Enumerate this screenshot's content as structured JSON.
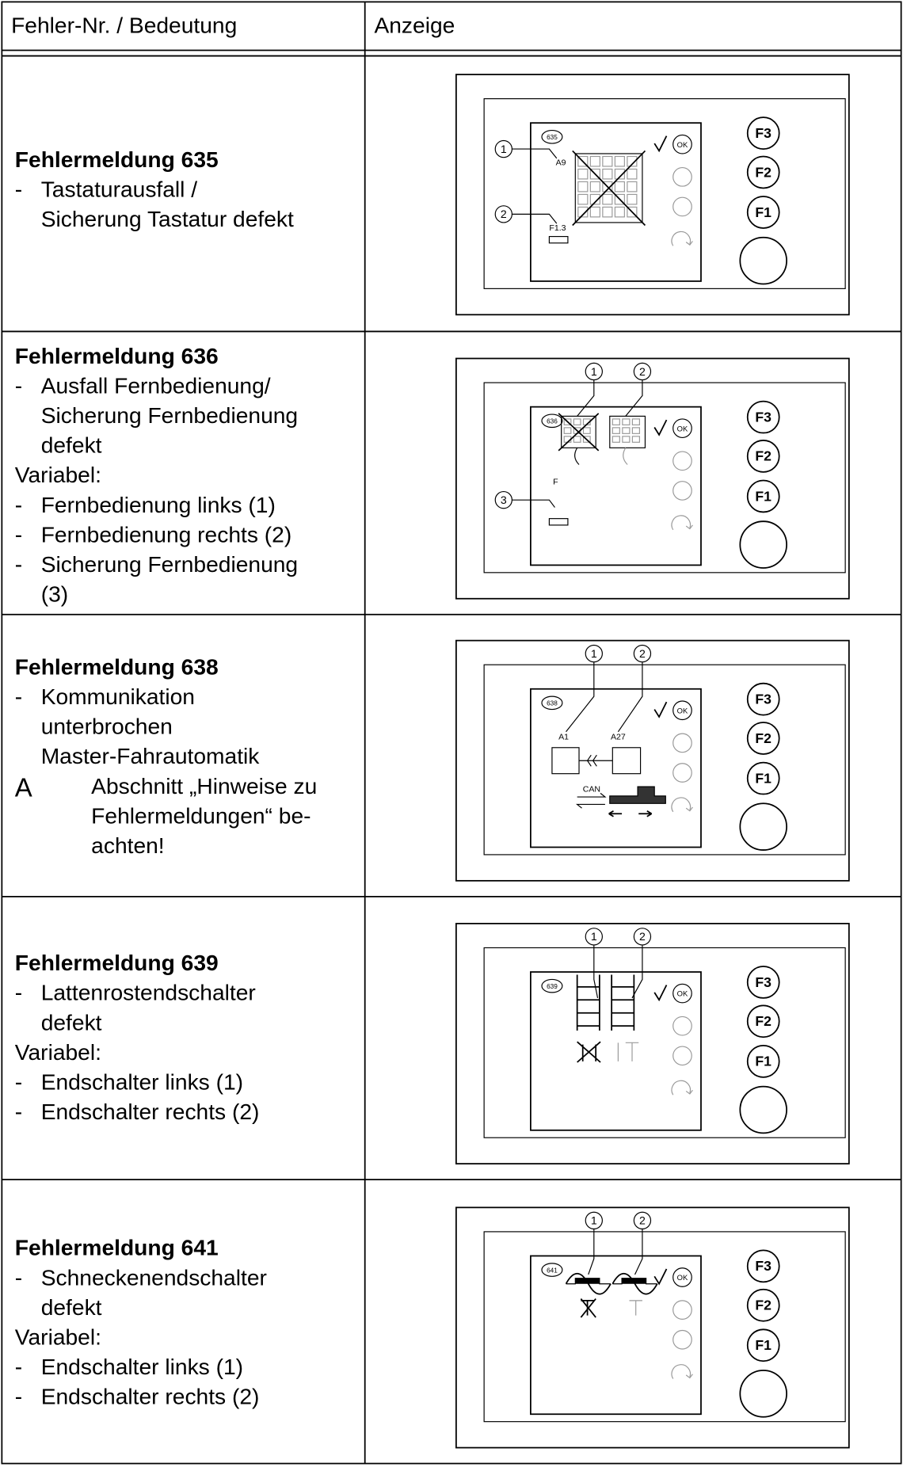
{
  "table": {
    "header": [
      "Fehler-Nr. / Bedeutung",
      "Anzeige"
    ],
    "keys": [
      "OK",
      "F3",
      "F2",
      "F1"
    ],
    "rows": [
      {
        "title": "Fehlermeldung 635",
        "lines": [
          [
            "Tastaturausfall /",
            "Sicherung Tastatur defekt"
          ]
        ],
        "display": {
          "code": "635",
          "labels": [
            "A9",
            "F1.3"
          ],
          "callouts": [
            "1",
            "2"
          ]
        }
      },
      {
        "title": "Fehlermeldung 636",
        "lines": [
          [
            "Ausfall Fernbedienung/",
            "Sicherung Fernbedienung",
            "defekt"
          ],
          "Variabel:",
          [
            "Fernbedienung links (1)"
          ],
          [
            "Fernbedienung rechts (2)"
          ],
          [
            "Sicherung Fernbedienung",
            "(3)"
          ]
        ],
        "display": {
          "code": "636",
          "labels": [
            "F"
          ],
          "callouts": [
            "1",
            "2",
            "3"
          ]
        }
      },
      {
        "title": "Fehlermeldung 638",
        "lines": [
          [
            "Kommunikation",
            "unterbrochen",
            "Master-Fahrautomatik"
          ]
        ],
        "note": {
          "symbol": "A",
          "lines": [
            "Abschnitt „Hinweise zu",
            "Fehlermeldungen“ be-",
            "achten!"
          ]
        },
        "display": {
          "code": "638",
          "labels": [
            "A1",
            "A27",
            "CAN"
          ],
          "callouts": [
            "1",
            "2"
          ]
        }
      },
      {
        "title": "Fehlermeldung 639",
        "lines": [
          [
            "Lattenrostendschalter",
            "defekt"
          ],
          "Variabel:",
          [
            "Endschalter links (1)"
          ],
          [
            "Endschalter rechts (2)"
          ]
        ],
        "display": {
          "code": "639",
          "callouts": [
            "1",
            "2"
          ]
        }
      },
      {
        "title": "Fehlermeldung 641",
        "lines": [
          [
            "Schneckenendschalter",
            "defekt"
          ],
          "Variabel:",
          [
            "Endschalter links (1)"
          ],
          [
            "Endschalter rechts (2)"
          ]
        ],
        "display": {
          "code": "641",
          "callouts": [
            "1",
            "2"
          ]
        }
      }
    ]
  }
}
